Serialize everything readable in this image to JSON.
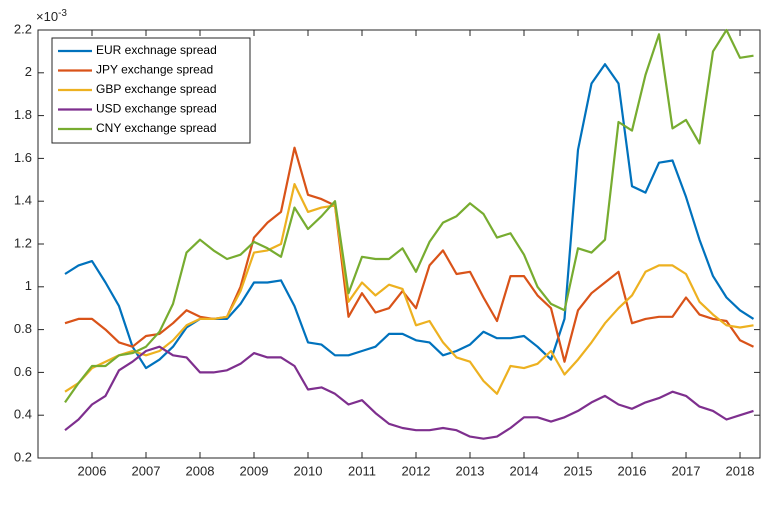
{
  "chart_data": {
    "type": "line",
    "axis_multiplier": "×10",
    "axis_multiplier_exponent": "-3",
    "x": [
      2005.5,
      2005.75,
      2006,
      2006.25,
      2006.5,
      2006.75,
      2007,
      2007.25,
      2007.5,
      2007.75,
      2008,
      2008.25,
      2008.5,
      2008.75,
      2009,
      2009.25,
      2009.5,
      2009.75,
      2010,
      2010.25,
      2010.5,
      2010.75,
      2011,
      2011.25,
      2011.5,
      2011.75,
      2012,
      2012.25,
      2012.5,
      2012.75,
      2013,
      2013.25,
      2013.5,
      2013.75,
      2014,
      2014.25,
      2014.5,
      2014.75,
      2015,
      2015.25,
      2015.5,
      2015.75,
      2016,
      2016.25,
      2016.5,
      2016.75,
      2017,
      2017.25,
      2017.5,
      2017.75,
      2018,
      2018.25
    ],
    "series": [
      {
        "name": "EUR exchnage spread",
        "color": "#0072BD",
        "values": [
          1.06,
          1.1,
          1.12,
          1.02,
          0.91,
          0.72,
          0.62,
          0.66,
          0.72,
          0.81,
          0.85,
          0.85,
          0.85,
          0.92,
          1.02,
          1.02,
          1.03,
          0.91,
          0.74,
          0.73,
          0.68,
          0.68,
          0.7,
          0.72,
          0.78,
          0.78,
          0.75,
          0.74,
          0.68,
          0.7,
          0.73,
          0.79,
          0.76,
          0.76,
          0.77,
          0.72,
          0.66,
          0.85,
          1.64,
          1.95,
          2.04,
          1.95,
          1.47,
          1.44,
          1.58,
          1.59,
          1.42,
          1.22,
          1.05,
          0.95,
          0.89,
          0.85
        ]
      },
      {
        "name": "JPY exchange spread",
        "color": "#D95319",
        "values": [
          0.83,
          0.85,
          0.85,
          0.8,
          0.74,
          0.72,
          0.77,
          0.78,
          0.83,
          0.89,
          0.86,
          0.85,
          0.86,
          1.0,
          1.23,
          1.3,
          1.35,
          1.65,
          1.43,
          1.41,
          1.38,
          0.86,
          0.97,
          0.88,
          0.9,
          0.98,
          0.9,
          1.1,
          1.17,
          1.06,
          1.07,
          0.95,
          0.84,
          1.05,
          1.05,
          0.96,
          0.9,
          0.65,
          0.89,
          0.97,
          1.02,
          1.07,
          0.83,
          0.85,
          0.86,
          0.86,
          0.95,
          0.87,
          0.85,
          0.84,
          0.75,
          0.72
        ]
      },
      {
        "name": "GBP exchange spread",
        "color": "#EDB120",
        "values": [
          0.51,
          0.55,
          0.62,
          0.65,
          0.68,
          0.7,
          0.68,
          0.7,
          0.75,
          0.82,
          0.85,
          0.85,
          0.86,
          0.98,
          1.16,
          1.17,
          1.2,
          1.48,
          1.35,
          1.37,
          1.38,
          0.93,
          1.02,
          0.96,
          1.01,
          0.99,
          0.82,
          0.84,
          0.74,
          0.67,
          0.65,
          0.56,
          0.5,
          0.63,
          0.62,
          0.64,
          0.7,
          0.59,
          0.66,
          0.74,
          0.83,
          0.9,
          0.96,
          1.07,
          1.1,
          1.1,
          1.06,
          0.93,
          0.87,
          0.82,
          0.81,
          0.82
        ]
      },
      {
        "name": "USD exchange spread",
        "color": "#7E2F8E",
        "values": [
          0.33,
          0.38,
          0.45,
          0.49,
          0.61,
          0.65,
          0.7,
          0.72,
          0.68,
          0.67,
          0.6,
          0.6,
          0.61,
          0.64,
          0.69,
          0.67,
          0.67,
          0.63,
          0.52,
          0.53,
          0.5,
          0.45,
          0.47,
          0.41,
          0.36,
          0.34,
          0.33,
          0.33,
          0.34,
          0.33,
          0.3,
          0.29,
          0.3,
          0.34,
          0.39,
          0.39,
          0.37,
          0.39,
          0.42,
          0.46,
          0.49,
          0.45,
          0.43,
          0.46,
          0.48,
          0.51,
          0.49,
          0.44,
          0.42,
          0.38,
          0.4,
          0.42
        ]
      },
      {
        "name": "CNY exchange spread",
        "color": "#77AC30",
        "values": [
          0.46,
          0.55,
          0.63,
          0.63,
          0.68,
          0.69,
          0.72,
          0.79,
          0.92,
          1.16,
          1.22,
          1.17,
          1.13,
          1.15,
          1.21,
          1.18,
          1.14,
          1.37,
          1.27,
          1.33,
          1.4,
          0.97,
          1.14,
          1.13,
          1.13,
          1.18,
          1.07,
          1.21,
          1.3,
          1.33,
          1.39,
          1.34,
          1.23,
          1.25,
          1.15,
          1.0,
          0.92,
          0.89,
          1.18,
          1.16,
          1.22,
          1.77,
          1.73,
          1.99,
          2.18,
          1.74,
          1.78,
          1.67,
          2.1,
          2.2,
          2.07,
          2.08
        ]
      }
    ],
    "xlim": [
      2005,
      2018.37
    ],
    "xticks": [
      2006,
      2007,
      2008,
      2009,
      2010,
      2011,
      2012,
      2013,
      2014,
      2015,
      2016,
      2017,
      2018
    ],
    "ylim": [
      0.2,
      2.2
    ],
    "yticks": [
      0.2,
      0.4,
      0.6,
      0.8,
      1,
      1.2,
      1.4,
      1.6,
      1.8,
      2,
      2.2
    ],
    "legend": "upper left"
  }
}
